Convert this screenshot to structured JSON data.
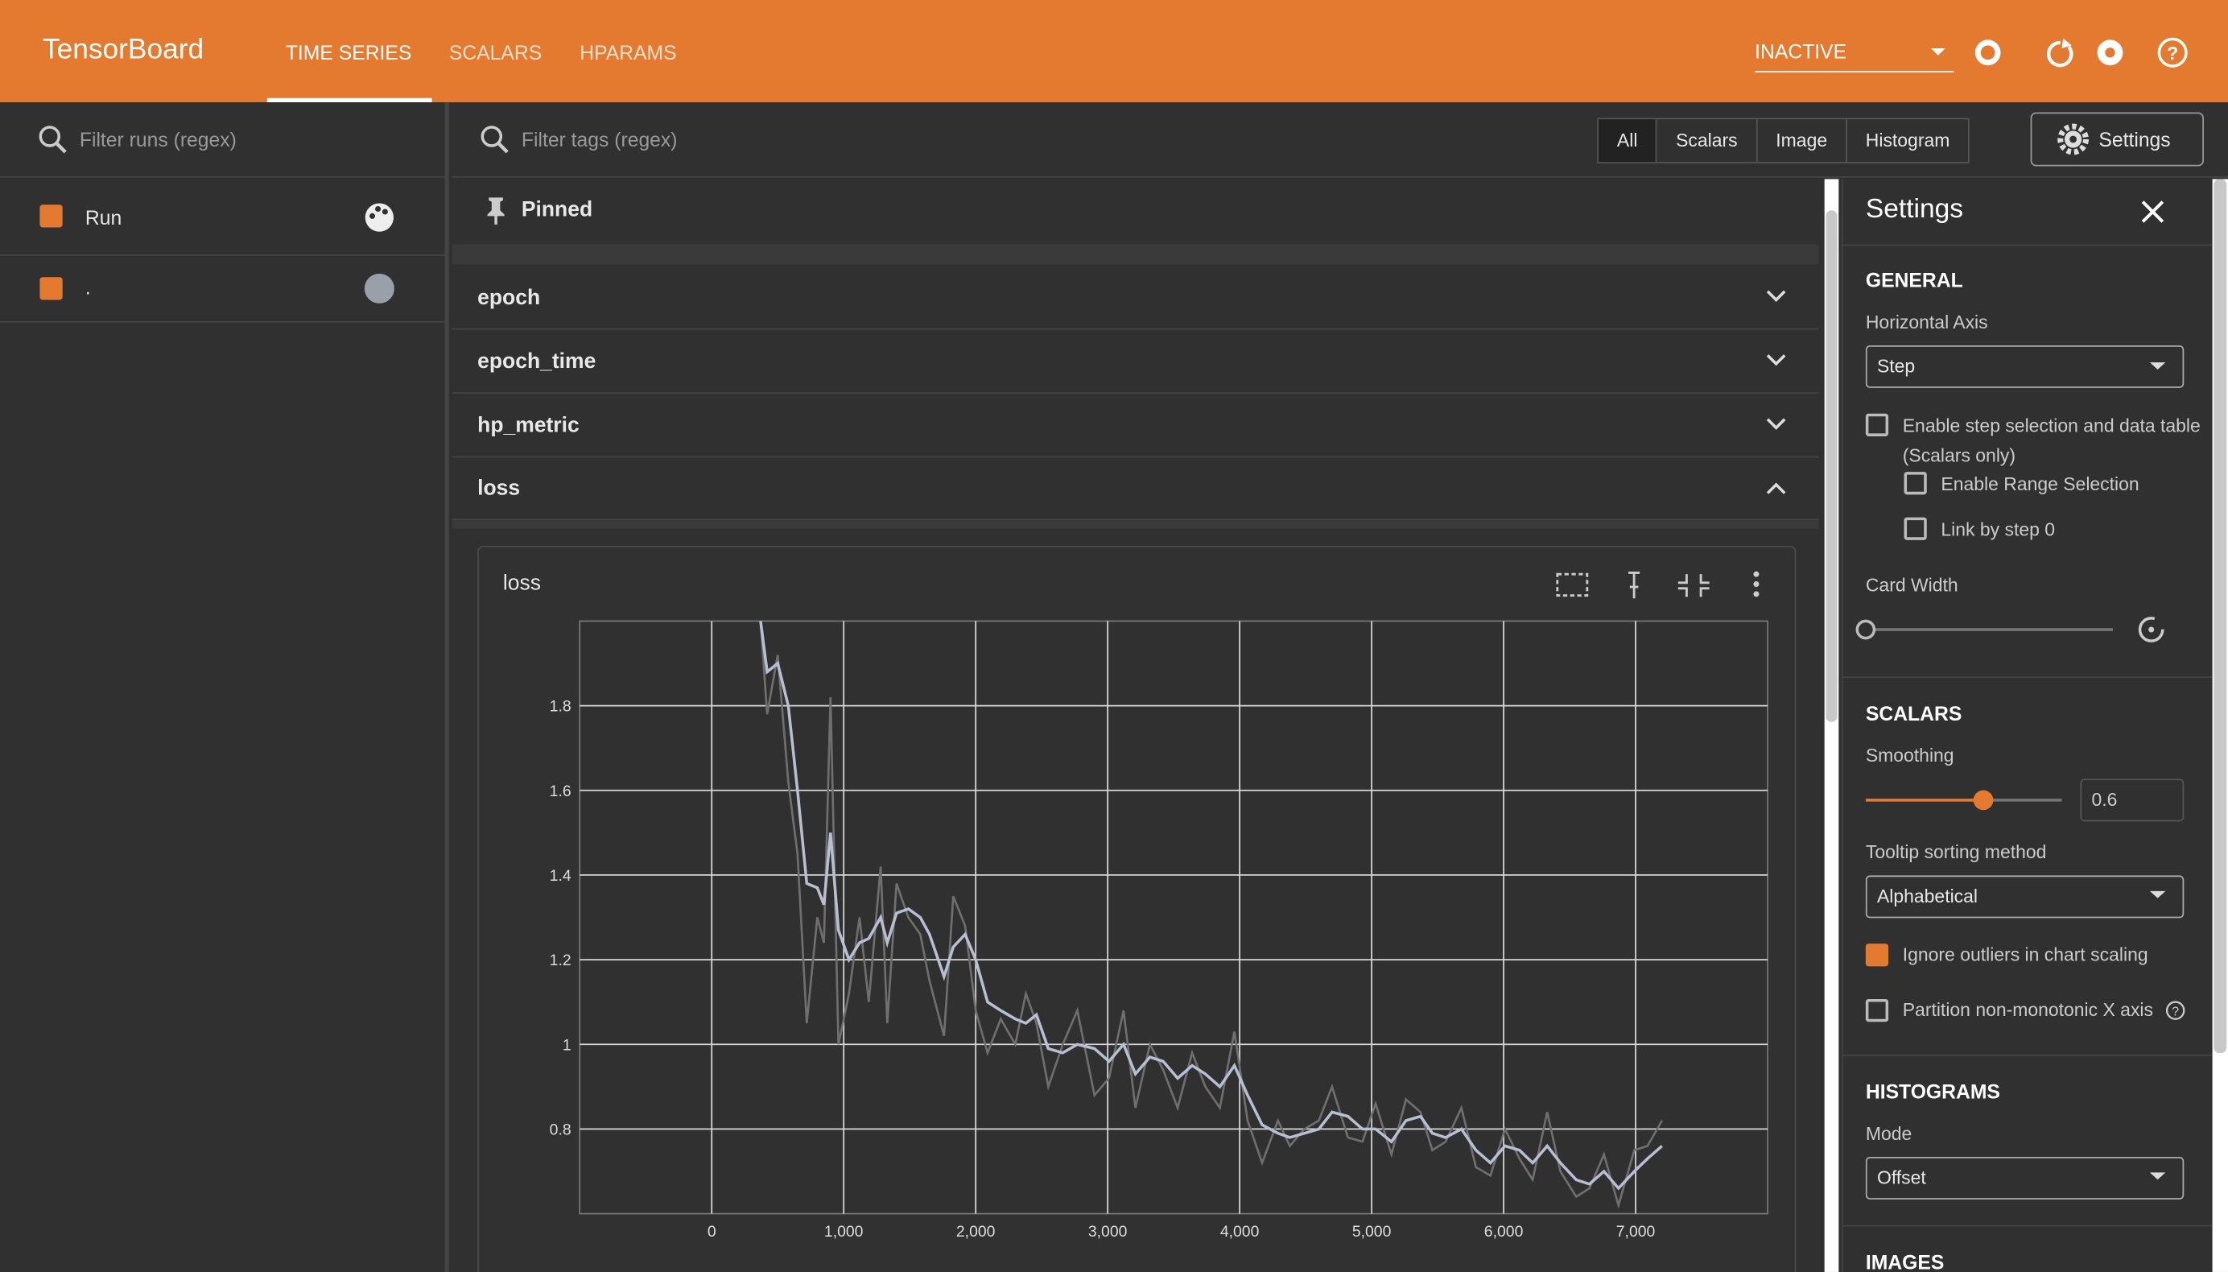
{
  "header": {
    "title": "TensorBoard",
    "tabs": [
      "TIME SERIES",
      "SCALARS",
      "HPARAMS"
    ],
    "status": "INACTIVE"
  },
  "runs": {
    "filter_placeholder": "Filter runs (regex)",
    "header": "Run",
    "items": [
      "."
    ]
  },
  "tags": {
    "filter_placeholder": "Filter tags (regex)",
    "filters": [
      "All",
      "Scalars",
      "Image",
      "Histogram"
    ],
    "settings_button": "Settings"
  },
  "groups": {
    "pinned": "Pinned",
    "sections": [
      "epoch",
      "epoch_time",
      "hp_metric",
      "loss"
    ]
  },
  "card": {
    "title": "loss"
  },
  "settings": {
    "title": "Settings",
    "general": "GENERAL",
    "horizontal_axis_label": "Horizontal Axis",
    "horizontal_axis": "Step",
    "step_selection": "Enable step selection and data table",
    "scalars_only": "(Scalars only)",
    "range_selection": "Enable Range Selection",
    "link_by_step": "Link by step 0",
    "card_width": "Card Width",
    "scalars": "SCALARS",
    "smoothing_label": "Smoothing",
    "smoothing": 0.6,
    "tooltip_label": "Tooltip sorting method",
    "tooltip": "Alphabetical",
    "ignore_outliers": "Ignore outliers in chart scaling",
    "partition": "Partition non-monotonic X axis",
    "histograms": "HISTOGRAMS",
    "mode_label": "Mode",
    "mode": "Offset",
    "images": "IMAGES"
  },
  "chart_data": {
    "type": "line",
    "grid": true,
    "x": [
      370,
      420,
      500,
      580,
      650,
      720,
      800,
      850,
      900,
      960,
      1040,
      1120,
      1190,
      1280,
      1330,
      1400,
      1490,
      1580,
      1650,
      1760,
      1830,
      1920,
      2000,
      2090,
      2190,
      2300,
      2380,
      2460,
      2550,
      2660,
      2770,
      2900,
      3010,
      3120,
      3210,
      3320,
      3420,
      3530,
      3640,
      3740,
      3850,
      3960,
      4060,
      4170,
      4290,
      4380,
      4490,
      4600,
      4700,
      4820,
      4930,
      5030,
      5150,
      5260,
      5370,
      5460,
      5560,
      5680,
      5790,
      5900,
      6010,
      6120,
      6220,
      6330,
      6430,
      6550,
      6650,
      6760,
      6870,
      6990,
      7090,
      7200
    ],
    "series": [
      {
        "color": "#6f6f6f",
        "values": [
          2.0,
          1.78,
          1.92,
          1.62,
          1.45,
          1.05,
          1.3,
          1.24,
          1.82,
          1.0,
          1.12,
          1.3,
          1.1,
          1.42,
          1.05,
          1.38,
          1.3,
          1.26,
          1.15,
          1.02,
          1.35,
          1.28,
          1.08,
          0.98,
          1.06,
          1.0,
          1.12,
          1.05,
          0.9,
          1.0,
          1.08,
          0.88,
          0.92,
          1.08,
          0.85,
          1.0,
          0.94,
          0.85,
          0.98,
          0.9,
          0.85,
          1.03,
          0.82,
          0.72,
          0.82,
          0.76,
          0.8,
          0.82,
          0.9,
          0.78,
          0.77,
          0.86,
          0.74,
          0.87,
          0.84,
          0.75,
          0.77,
          0.85,
          0.71,
          0.69,
          0.8,
          0.73,
          0.68,
          0.84,
          0.7,
          0.64,
          0.66,
          0.74,
          0.62,
          0.75,
          0.76,
          0.82
        ]
      },
      {
        "color": "#b9bed2",
        "values": [
          2.0,
          1.88,
          1.9,
          1.8,
          1.6,
          1.38,
          1.37,
          1.33,
          1.5,
          1.27,
          1.2,
          1.24,
          1.25,
          1.3,
          1.24,
          1.31,
          1.32,
          1.3,
          1.26,
          1.16,
          1.23,
          1.26,
          1.2,
          1.1,
          1.08,
          1.06,
          1.05,
          1.07,
          0.99,
          0.98,
          1.0,
          0.99,
          0.96,
          1.0,
          0.93,
          0.97,
          0.96,
          0.92,
          0.95,
          0.93,
          0.9,
          0.95,
          0.88,
          0.81,
          0.79,
          0.78,
          0.79,
          0.8,
          0.84,
          0.83,
          0.8,
          0.8,
          0.77,
          0.82,
          0.83,
          0.79,
          0.78,
          0.8,
          0.75,
          0.72,
          0.76,
          0.75,
          0.72,
          0.76,
          0.72,
          0.68,
          0.67,
          0.7,
          0.66,
          0.7,
          0.73,
          0.76
        ]
      }
    ],
    "xlim": [
      -1000,
      8000
    ],
    "ylim": [
      0.6,
      2.0
    ],
    "xticks": [
      0,
      {
        "value": 1000,
        "label": "1,000"
      },
      {
        "value": 2000,
        "label": "2,000"
      },
      {
        "value": 3000,
        "label": "3,000"
      },
      {
        "value": 4000,
        "label": "4,000"
      },
      {
        "value": 5000,
        "label": "5,000"
      },
      {
        "value": 6000,
        "label": "6,000"
      },
      {
        "value": 7000,
        "label": "7,000"
      }
    ],
    "yticks": [
      0.8,
      1,
      1.2,
      1.4,
      1.6,
      1.8
    ]
  }
}
